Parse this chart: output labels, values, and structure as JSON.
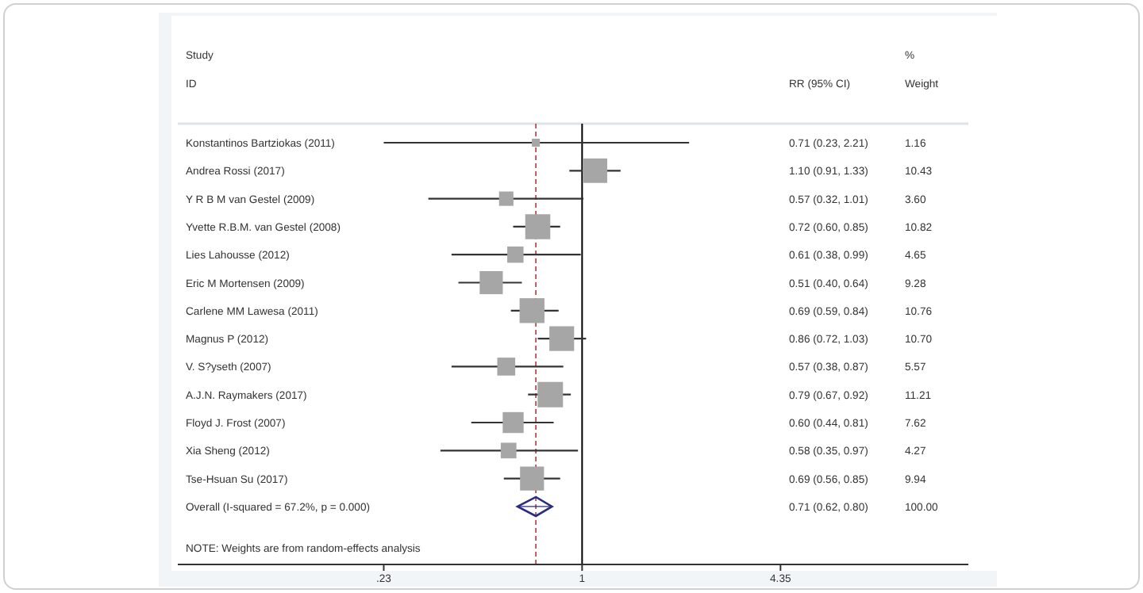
{
  "chart_data": {
    "type": "bubble",
    "orientation": "horizontal",
    "log": "x",
    "categories": [
      "Konstantinos Bartziokas (2011)",
      "Andrea Rossi (2017)",
      "Y R B M van Gestel (2009)",
      "Yvette R.B.M. van Gestel (2008)",
      "Lies Lahousse (2012)",
      "Eric M Mortensen (2009)",
      "Carlene MM Lawesa (2011)",
      "Magnus P (2012)",
      "V. S?yseth (2007)",
      "A.J.N. Raymakers (2017)",
      "Floyd J. Frost (2007)",
      "Xia Sheng (2012)",
      "Tse-Hsuan Su (2017)",
      "Overall  (I-squared = 67.2%, p = 0.000)"
    ],
    "series": [
      {
        "marker": "square",
        "color": "#a6a6a6",
        "values": [
          0.71,
          1.1,
          0.57,
          0.72,
          0.61,
          0.51,
          0.69,
          0.86,
          0.57,
          0.79,
          0.6,
          0.58,
          0.69,
          null
        ],
        "errors": [
          [
            0.23,
            2.21
          ],
          [
            0.91,
            1.33
          ],
          [
            0.32,
            1.01
          ],
          [
            0.6,
            0.85
          ],
          [
            0.38,
            0.99
          ],
          [
            0.4,
            0.64
          ],
          [
            0.59,
            0.84
          ],
          [
            0.72,
            1.03
          ],
          [
            0.38,
            0.87
          ],
          [
            0.67,
            0.92
          ],
          [
            0.44,
            0.81
          ],
          [
            0.35,
            0.97
          ],
          [
            0.56,
            0.85
          ],
          null
        ],
        "sizes": [
          0.1,
          0.93,
          0.32,
          0.97,
          0.41,
          0.83,
          0.96,
          0.95,
          0.5,
          1,
          0.68,
          0.38,
          0.89,
          null
        ]
      },
      {
        "type": "scatter",
        "marker": "diamond",
        "color": "#2b2b80",
        "values": [
          null,
          null,
          null,
          null,
          null,
          null,
          null,
          null,
          null,
          null,
          null,
          null,
          null,
          0.71
        ],
        "errors": [
          null,
          null,
          null,
          null,
          null,
          null,
          null,
          null,
          null,
          null,
          null,
          null,
          null,
          [
            0.62,
            0.8
          ]
        ]
      }
    ],
    "xlim": [
      0.05,
      17.5
    ],
    "xticks": [
      {
        "value": 0.23,
        "label": ".23"
      },
      1,
      4.35
    ],
    "ref_lines": [
      {
        "axis": "x",
        "value": 1,
        "color": "#000000",
        "line_style": "solid"
      },
      {
        "axis": "x",
        "value": 0.71,
        "color": "#b05050",
        "line_style": "dashed"
      }
    ],
    "annotations": [
      "Study",
      "ID",
      "RR (95% CI)",
      "%",
      "Weight",
      "NOTE: Weights are from random-effects analysis",
      "1.16",
      "10.43",
      "3.60",
      "10.82",
      "4.65",
      "9.28",
      "10.76",
      "10.70",
      "5.57",
      "11.21",
      "7.62",
      "4.27",
      "9.94",
      "100.00",
      "0.71 (0.23, 2.21)",
      "1.10 (0.91, 1.33)",
      "0.57 (0.32, 1.01)",
      "0.72 (0.60, 0.85)",
      "0.61 (0.38, 0.99)",
      "0.51 (0.40, 0.64)",
      "0.69 (0.59, 0.84)",
      "0.86 (0.72, 1.03)",
      "0.57 (0.38, 0.87)",
      "0.79 (0.67, 0.92)",
      "0.60 (0.44, 0.81)",
      "0.58 (0.35, 0.97)",
      "0.69 (0.56, 0.85)",
      "0.71 (0.62, 0.80)"
    ]
  }
}
